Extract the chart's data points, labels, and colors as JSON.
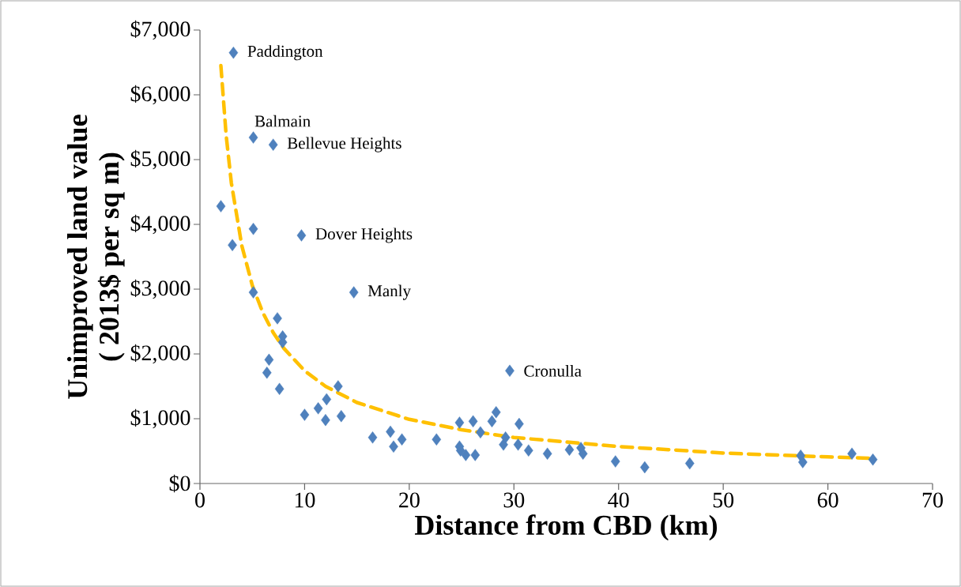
{
  "chart_data": {
    "type": "scatter",
    "xlabel": "Distance from CBD (km)",
    "ylabel": "Unimproved land value\n( 2013$ per sq m)",
    "xlim": [
      0,
      70
    ],
    "xticks": [
      0,
      10,
      20,
      30,
      40,
      50,
      60,
      70
    ],
    "ylim": [
      0,
      7000
    ],
    "yticks": [
      {
        "value": 0,
        "label": "$0"
      },
      {
        "value": 1000,
        "label": "$1,000"
      },
      {
        "value": 2000,
        "label": "$2,000"
      },
      {
        "value": 3000,
        "label": "$3,000"
      },
      {
        "value": 4000,
        "label": "$4,000"
      },
      {
        "value": 5000,
        "label": "$5,000"
      },
      {
        "value": 6000,
        "label": "$6,000"
      },
      {
        "value": 7000,
        "label": "$7,000"
      }
    ],
    "grid": false,
    "marker": "diamond",
    "series": [
      {
        "color": "#4f81bd",
        "x": [
          3.2,
          5.1,
          7.0,
          2.0,
          3.1,
          5.1,
          9.7,
          5.1,
          14.7,
          7.4,
          7.9,
          7.9,
          6.6,
          6.4,
          7.6,
          29.6,
          10.0,
          11.3,
          12.1,
          12.0,
          13.2,
          13.5,
          16.5,
          18.2,
          18.5,
          19.3,
          22.6,
          24.8,
          24.8,
          24.9,
          25.4,
          26.1,
          26.3,
          26.8,
          27.9,
          28.3,
          29.0,
          29.2,
          30.5,
          30.4,
          31.4,
          33.2,
          35.3,
          36.4,
          36.6,
          39.7,
          42.5,
          46.8,
          57.4,
          57.6,
          62.3,
          64.3
        ],
        "values": [
          6650,
          5340,
          5230,
          4280,
          3680,
          3930,
          3830,
          2950,
          2950,
          2550,
          2270,
          2180,
          1910,
          1710,
          1460,
          1740,
          1060,
          1160,
          1300,
          980,
          1500,
          1040,
          710,
          800,
          570,
          680,
          680,
          940,
          570,
          510,
          440,
          960,
          440,
          790,
          960,
          1100,
          600,
          710,
          920,
          600,
          510,
          460,
          520,
          550,
          460,
          340,
          250,
          310,
          430,
          330,
          460,
          370
        ]
      },
      {
        "type": "line",
        "color": "#ffc000",
        "line_style": "dashed",
        "marker": "none",
        "x": [
          2,
          2.5,
          3,
          4,
          5,
          6,
          7,
          8,
          10,
          12,
          15,
          20,
          25,
          30,
          40,
          50,
          60,
          64
        ],
        "values": [
          6450,
          5380,
          4640,
          3670,
          3060,
          2640,
          2330,
          2090,
          1740,
          1500,
          1250,
          990,
          830,
          710,
          570,
          470,
          410,
          390
        ]
      }
    ],
    "annotations": [
      {
        "text": "Paddington",
        "x": 3.2,
        "y": 6650
      },
      {
        "text": "Balmain",
        "x": 5.1,
        "y": 5340
      },
      {
        "text": "Bellevue Heights",
        "x": 7.0,
        "y": 5230
      },
      {
        "text": "Dover Heights",
        "x": 9.7,
        "y": 3830
      },
      {
        "text": "Manly",
        "x": 14.7,
        "y": 2950
      },
      {
        "text": "Cronulla",
        "x": 29.6,
        "y": 1740
      }
    ]
  }
}
